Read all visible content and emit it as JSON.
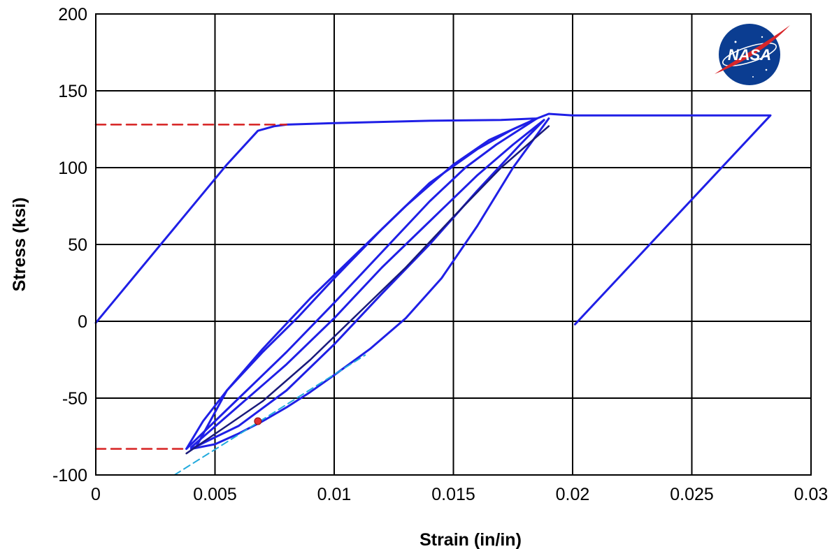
{
  "chart_data": {
    "type": "line",
    "title": "",
    "xlabel": "Strain (in/in)",
    "ylabel": "Stress (ksi)",
    "xlim": [
      0,
      0.03
    ],
    "ylim": [
      -100,
      200
    ],
    "x_ticks": [
      0,
      0.005,
      0.01,
      0.015,
      0.02,
      0.025,
      0.03
    ],
    "x_tick_labels": [
      "0",
      "0.005",
      "0.01",
      "0.015",
      "0.02",
      "0.025",
      "0.03"
    ],
    "y_ticks": [
      -100,
      -50,
      0,
      50,
      100,
      150,
      200
    ],
    "y_tick_labels": [
      "-100",
      "-50",
      "0",
      "50",
      "100",
      "150",
      "200"
    ],
    "grid": true,
    "legend": "none",
    "logo": "NASA",
    "colors": {
      "curve": "#1f1fe6",
      "curve_dark": "#1a1a7a",
      "guide": "#d62020",
      "tangent": "#22aadd",
      "marker": "#e03030",
      "grid": "#000000"
    },
    "series": [
      {
        "style": "main",
        "x": [
          0,
          0.0055,
          0.0068,
          0.0075,
          0.008,
          0.01,
          0.014,
          0.017,
          0.0185,
          0.019,
          0.02,
          0.0283,
          0.0201
        ],
        "y": [
          -1,
          102,
          124,
          127,
          128,
          129,
          130.5,
          131,
          132,
          135,
          134,
          134,
          -2
        ]
      },
      {
        "style": "main",
        "x": [
          0.0185,
          0.0175,
          0.016,
          0.014,
          0.012,
          0.01,
          0.0085,
          0.007,
          0.0055,
          0.0045,
          0.0038
        ],
        "y": [
          132,
          125,
          112,
          90,
          60,
          28,
          3,
          -20,
          -45,
          -65,
          -83
        ]
      },
      {
        "style": "main",
        "x": [
          0.0038,
          0.006,
          0.008,
          0.01,
          0.012,
          0.014,
          0.0155,
          0.0168,
          0.0178,
          0.0185
        ],
        "y": [
          -83,
          -50,
          -20,
          12,
          45,
          78,
          100,
          115,
          125,
          132
        ]
      },
      {
        "style": "main",
        "x": [
          0.0185,
          0.0165,
          0.015,
          0.013,
          0.011,
          0.009,
          0.007,
          0.0055,
          0.0042
        ],
        "y": [
          132,
          118,
          102,
          75,
          45,
          15,
          -18,
          -45,
          -82
        ]
      },
      {
        "style": "main",
        "x": [
          0.004,
          0.006,
          0.008,
          0.01,
          0.012,
          0.014,
          0.016,
          0.0175,
          0.0188
        ],
        "y": [
          -82,
          -55,
          -28,
          2,
          35,
          65,
          95,
          115,
          131
        ]
      },
      {
        "style": "main",
        "x": [
          0.0188,
          0.0178,
          0.016,
          0.014,
          0.012,
          0.01,
          0.008,
          0.006,
          0.004
        ],
        "y": [
          131,
          115,
          85,
          50,
          18,
          -15,
          -45,
          -68,
          -83
        ]
      },
      {
        "style": "main",
        "x": [
          0.004,
          0.005,
          0.006,
          0.007,
          0.008,
          0.009,
          0.01,
          0.0115,
          0.013,
          0.0145,
          0.016,
          0.0175,
          0.019
        ],
        "y": [
          -83,
          -80,
          -73,
          -65,
          -56,
          -46,
          -35,
          -18,
          2,
          28,
          62,
          100,
          132
        ]
      },
      {
        "style": "dark",
        "x": [
          0.019,
          0.017,
          0.015,
          0.013,
          0.011,
          0.009,
          0.007,
          0.0055,
          0.0038
        ],
        "y": [
          127,
          100,
          68,
          35,
          5,
          -25,
          -52,
          -68,
          -86
        ]
      },
      {
        "style": "guide",
        "x": [
          0,
          0.008
        ],
        "y": [
          128,
          128
        ]
      },
      {
        "style": "guide",
        "x": [
          0,
          0.0038
        ],
        "y": [
          -83,
          -83
        ]
      },
      {
        "style": "tangent",
        "x": [
          0.0033,
          0.0113
        ],
        "y": [
          -100,
          -22
        ]
      }
    ],
    "markers": [
      {
        "x": 0.0068,
        "y": -65
      }
    ]
  }
}
